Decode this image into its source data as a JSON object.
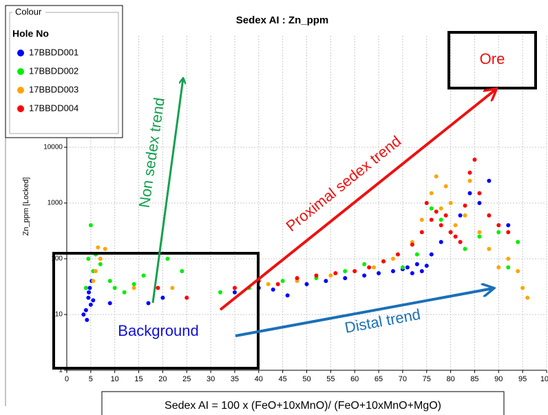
{
  "chart_data": {
    "type": "scatter",
    "title": "Sedex AI : Zn_ppm",
    "xlabel": "Sedex AI = 100 x (FeO+10xMnO)/ (FeO+10xMnO+MgO)",
    "ylabel": "Zn_ppm [Locked]",
    "legend_group": "Colour",
    "legend_title": "Hole No",
    "xlim": [
      0,
      100
    ],
    "xticks": [
      0,
      5,
      10,
      15,
      20,
      25,
      30,
      35,
      40,
      45,
      50,
      55,
      60,
      65,
      70,
      75,
      80,
      85,
      90,
      95,
      100
    ],
    "ylim": [
      1,
      1000000
    ],
    "yticks": [
      1,
      10,
      100,
      1000,
      10000
    ],
    "log_y": true,
    "grid": true,
    "annotations": [
      "Ore",
      "Background",
      "Non sedex trend",
      "Proximal sedex trend",
      "Distal trend"
    ],
    "series": [
      {
        "name": "17BBDD001",
        "color": "#0000ff",
        "x": [
          3.5,
          4,
          4.2,
          4.5,
          4.8,
          5,
          5.2,
          4.6,
          5.5,
          9,
          17,
          20,
          35,
          40,
          43,
          46,
          50,
          54,
          58,
          62,
          65,
          68,
          70,
          71,
          72,
          73,
          74,
          75,
          76,
          78,
          80,
          82,
          84,
          86,
          88,
          92
        ],
        "values": [
          10,
          12,
          8,
          20,
          30,
          15,
          40,
          25,
          18,
          16,
          16,
          20,
          25,
          30,
          28,
          22,
          35,
          40,
          45,
          50,
          55,
          60,
          65,
          70,
          55,
          80,
          60,
          75,
          120,
          200,
          300,
          600,
          1500,
          1000,
          2500,
          400
        ]
      },
      {
        "name": "17BBDD002",
        "color": "#00ee00",
        "x": [
          4,
          4.5,
          5,
          5.5,
          6,
          7,
          9,
          10,
          12,
          14,
          16,
          21,
          24,
          32,
          38,
          45,
          52,
          58,
          62,
          66,
          70,
          73,
          76,
          78,
          80,
          83,
          86,
          88,
          90,
          92,
          94
        ],
        "values": [
          30,
          100,
          400,
          60,
          120,
          80,
          40,
          30,
          25,
          35,
          50,
          100,
          60,
          25,
          30,
          40,
          45,
          60,
          80,
          90,
          70,
          120,
          800,
          500,
          300,
          150,
          250,
          600,
          300,
          70,
          200
        ]
      },
      {
        "name": "17BBDD003",
        "color": "#ffa500",
        "x": [
          5.5,
          6,
          6.5,
          7,
          8,
          14,
          22,
          35,
          42,
          48,
          55,
          60,
          64,
          68,
          72,
          74,
          76,
          77,
          78,
          79,
          80,
          81,
          83,
          84,
          86,
          88,
          90,
          92,
          94,
          95,
          96
        ],
        "values": [
          40,
          60,
          160,
          100,
          150,
          30,
          30,
          30,
          35,
          40,
          50,
          60,
          70,
          100,
          200,
          500,
          1500,
          3000,
          800,
          2000,
          1000,
          400,
          600,
          2500,
          300,
          150,
          70,
          100,
          60,
          30,
          20
        ]
      },
      {
        "name": "17BBDD004",
        "color": "#ff0000",
        "x": [
          19,
          25,
          35,
          40,
          44,
          48,
          52,
          56,
          60,
          63,
          66,
          69,
          72,
          74,
          75,
          76,
          77,
          78,
          79,
          80,
          81,
          82,
          83,
          84,
          85,
          86,
          88,
          90,
          92
        ],
        "values": [
          30,
          20,
          30,
          40,
          35,
          45,
          50,
          55,
          60,
          70,
          90,
          120,
          180,
          300,
          1000,
          500,
          700,
          400,
          600,
          300,
          250,
          200,
          900,
          3500,
          6000,
          1500,
          600,
          400,
          300
        ]
      }
    ]
  }
}
